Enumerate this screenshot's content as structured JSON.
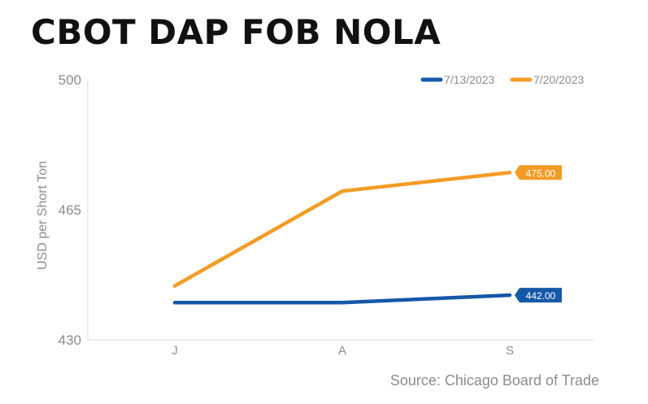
{
  "title": "CBOT DAP FOB NOLA",
  "source": "Source: Chicago Board of Trade",
  "colors": {
    "blue": "#1558a8",
    "orange": "#f39c25",
    "axis": "#d9d9d9",
    "tick_text": "#8c8c8c"
  },
  "chart_data": {
    "type": "line",
    "title": "CBOT DAP FOB NOLA",
    "ylabel": "USD per Short Ton",
    "xlabel": "",
    "categories": [
      "J",
      "A",
      "S"
    ],
    "ylim": [
      430,
      500
    ],
    "yticks": [
      430,
      465,
      500
    ],
    "yticks_labels": [
      "430",
      "465",
      "500"
    ],
    "grid": false,
    "legend_position": "top-right",
    "series": [
      {
        "name": "7/13/2023",
        "color": "#1558a8",
        "values": [
          440.0,
          440.0,
          442.0
        ],
        "end_label": "442.00"
      },
      {
        "name": "7/20/2023",
        "color": "#f39c25",
        "values": [
          444.5,
          470.0,
          475.0
        ],
        "end_label": "475.00"
      }
    ]
  }
}
